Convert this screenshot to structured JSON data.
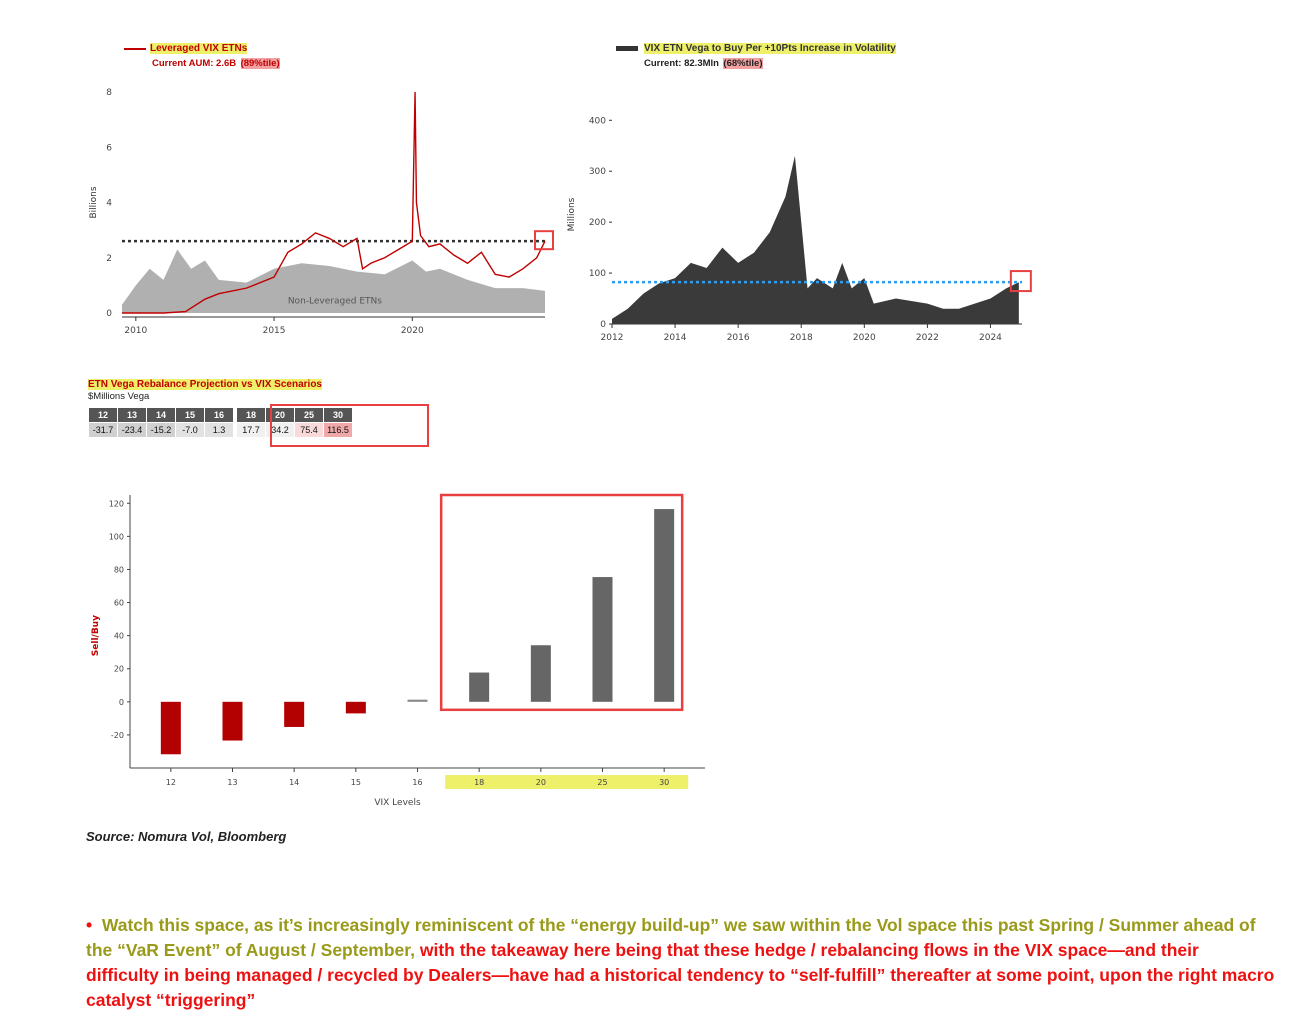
{
  "colors": {
    "accent_red": "#c00000",
    "olive": "#9a9a1a",
    "bright_red": "#ee1111",
    "highlight_yellow": "#eef06a",
    "highlight_red": "#f3a0a0"
  },
  "chart_data": [
    {
      "type": "line",
      "title": "Leveraged VIX ETNs",
      "subtitle_prefix": "Current AUM: 2.6B",
      "subtitle_pct": "(89%tile)",
      "ylabel": "Billions",
      "ylim": [
        0,
        8
      ],
      "yticks": [
        "0",
        "2",
        "4",
        "6",
        "8"
      ],
      "xticks": [
        "2010",
        "2015",
        "2020"
      ],
      "area_label": "Non-Leveraged ETNs",
      "reference_level": 2.6,
      "series": [
        {
          "name": "Leveraged VIX ETNs",
          "x": [
            2009.5,
            2011.0,
            2011.8,
            2012.5,
            2013.0,
            2014.0,
            2015.0,
            2015.5,
            2016.0,
            2016.5,
            2017.0,
            2017.5,
            2018.0,
            2018.2,
            2018.5,
            2019.0,
            2019.5,
            2020.0,
            2020.1,
            2020.15,
            2020.3,
            2020.6,
            2021.0,
            2021.5,
            2022.0,
            2022.5,
            2023.0,
            2023.5,
            2024.0,
            2024.5,
            2024.8
          ],
          "values": [
            0.0,
            0.0,
            0.05,
            0.5,
            0.7,
            0.9,
            1.3,
            2.2,
            2.5,
            2.9,
            2.7,
            2.4,
            2.7,
            1.6,
            1.8,
            2.0,
            2.3,
            2.6,
            8.0,
            4.0,
            2.8,
            2.4,
            2.5,
            2.1,
            1.8,
            2.2,
            1.4,
            1.3,
            1.6,
            2.0,
            2.6
          ]
        },
        {
          "name": "Non-Leveraged ETNs",
          "x": [
            2009.5,
            2010.0,
            2010.5,
            2011.0,
            2011.5,
            2012.0,
            2012.5,
            2013.0,
            2014.0,
            2015.0,
            2016.0,
            2017.0,
            2018.0,
            2019.0,
            2020.0,
            2020.5,
            2021.0,
            2022.0,
            2023.0,
            2024.0,
            2024.8
          ],
          "values": [
            0.3,
            1.0,
            1.6,
            1.2,
            2.3,
            1.6,
            1.9,
            1.2,
            1.1,
            1.6,
            1.8,
            1.7,
            1.5,
            1.4,
            1.9,
            1.5,
            1.6,
            1.2,
            0.9,
            0.9,
            0.8
          ]
        }
      ]
    },
    {
      "type": "area",
      "title": "VIX ETN Vega to Buy Per +10Pts Increase in Volatility",
      "subtitle_prefix": "Current: 82.3Mln",
      "subtitle_pct": "(68%tile)",
      "ylabel": "Millions",
      "ylim": [
        0,
        430
      ],
      "yticks": [
        "0",
        "100",
        "200",
        "300",
        "400"
      ],
      "xticks": [
        "2012",
        "2014",
        "2016",
        "2018",
        "2020",
        "2022",
        "2024"
      ],
      "reference_level": 82.3,
      "series": [
        {
          "name": "VIX ETN Vega",
          "x": [
            2012.0,
            2012.5,
            2013.0,
            2013.5,
            2014.0,
            2014.5,
            2015.0,
            2015.5,
            2016.0,
            2016.5,
            2017.0,
            2017.5,
            2017.8,
            2018.0,
            2018.2,
            2018.5,
            2019.0,
            2019.3,
            2019.6,
            2020.0,
            2020.3,
            2021.0,
            2022.0,
            2022.5,
            2023.0,
            2023.5,
            2024.0,
            2024.5,
            2024.9
          ],
          "values": [
            10,
            30,
            60,
            80,
            90,
            120,
            110,
            150,
            120,
            140,
            180,
            250,
            330,
            200,
            70,
            90,
            70,
            120,
            70,
            90,
            40,
            50,
            40,
            30,
            30,
            40,
            50,
            70,
            82
          ]
        }
      ]
    },
    {
      "type": "table",
      "title": "ETN Vega Rebalance Projection vs VIX Scenarios",
      "unit": "$Millions Vega",
      "columns": [
        "12",
        "13",
        "14",
        "15",
        "16",
        "18",
        "20",
        "25",
        "30"
      ],
      "values": [
        "-31.7",
        "-23.4",
        "-15.2",
        "-7.0",
        "1.3",
        "17.7",
        "34.2",
        "75.4",
        "116.5"
      ]
    },
    {
      "type": "bar",
      "xlabel": "VIX Levels",
      "ylabel": "Sell/Buy",
      "ylim": [
        -40,
        125
      ],
      "yticks": [
        "120",
        "100",
        "80",
        "60",
        "40",
        "20",
        "0",
        "-20"
      ],
      "categories": [
        "12",
        "13",
        "14",
        "15",
        "16",
        "18",
        "20",
        "25",
        "30"
      ],
      "values": [
        -31.7,
        -23.4,
        -15.2,
        -7.0,
        1.3,
        17.7,
        34.2,
        75.4,
        116.5
      ]
    }
  ],
  "source": "Source: Nomura Vol, Bloomberg",
  "commentary": {
    "bullet": "•",
    "part1": "Watch this space, as it’s increasingly reminiscent of the “energy build-up” we saw within the Vol space this past Spring / Summer ahead of the “VaR Event” of August / September,",
    "part2": " with the takeaway here being that these hedge / rebalancing flows in the VIX space—and their difficulty in being managed / recycled by Dealers—have had a historical tendency to “self-fulfill” thereafter at some point, upon the right macro catalyst “triggering”"
  }
}
